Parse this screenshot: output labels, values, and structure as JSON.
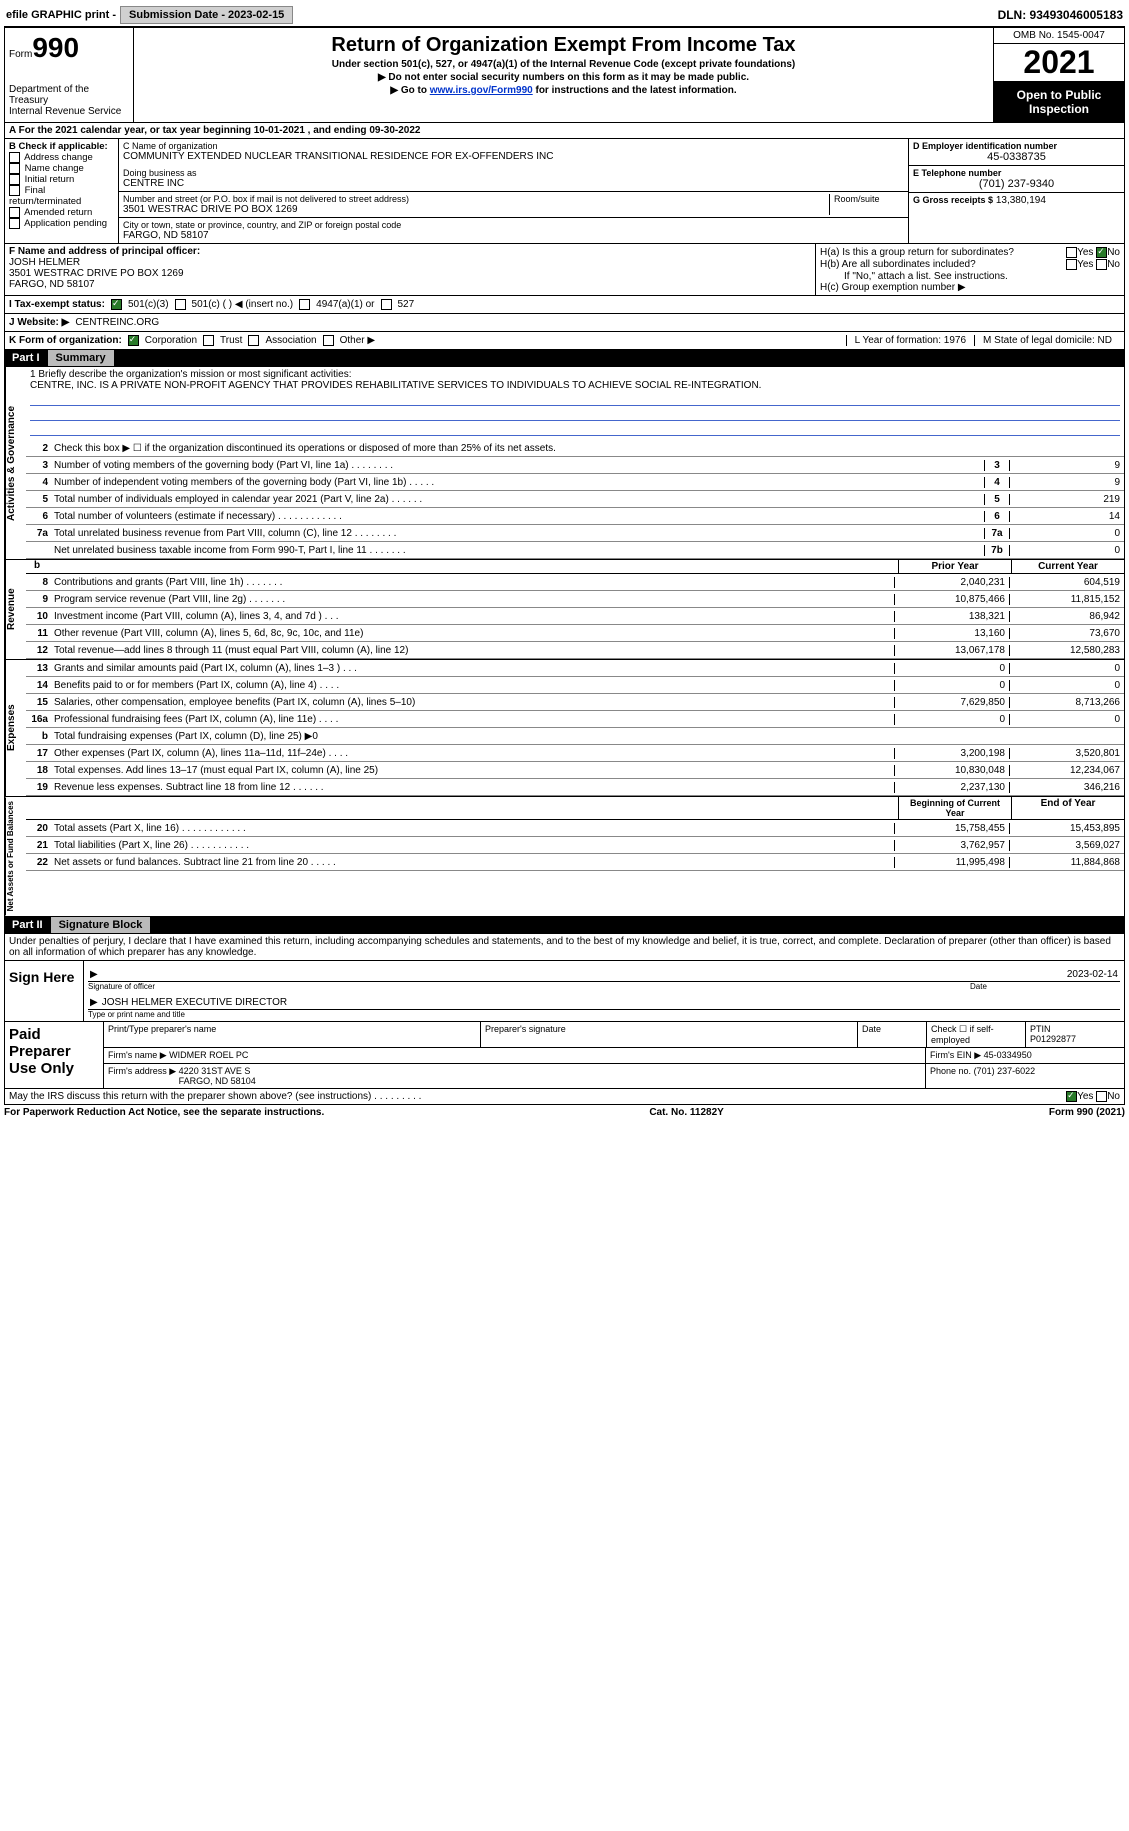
{
  "topbar": {
    "efile": "efile GRAPHIC print -",
    "btn": "Submission Date - 2023-02-15",
    "dln": "DLN: 93493046005183"
  },
  "header": {
    "form_label": "Form",
    "form_num": "990",
    "dept": "Department of the Treasury\nInternal Revenue Service",
    "title": "Return of Organization Exempt From Income Tax",
    "sub": "Under section 501(c), 527, or 4947(a)(1) of the Internal Revenue Code (except private foundations)",
    "line1": "▶ Do not enter social security numbers on this form as it may be made public.",
    "line2_pre": "▶ Go to ",
    "line2_link": "www.irs.gov/Form990",
    "line2_post": " for instructions and the latest information.",
    "omb": "OMB No. 1545-0047",
    "year": "2021",
    "open": "Open to Public Inspection"
  },
  "rowA": "A For the 2021 calendar year, or tax year beginning 10-01-2021     , and ending 09-30-2022",
  "colB": {
    "hdr": "B Check if applicable:",
    "items": [
      "Address change",
      "Name change",
      "Initial return",
      "Final return/terminated",
      "Amended return",
      "Application pending"
    ]
  },
  "colC": {
    "l1": "C Name of organization",
    "name": "COMMUNITY EXTENDED NUCLEAR TRANSITIONAL RESIDENCE FOR EX-OFFENDERS INC",
    "dba_l": "Doing business as",
    "dba": "CENTRE INC",
    "addr_l": "Number and street (or P.O. box if mail is not delivered to street address)",
    "room_l": "Room/suite",
    "addr": "3501 WESTRAC DRIVE PO BOX 1269",
    "city_l": "City or town, state or province, country, and ZIP or foreign postal code",
    "city": "FARGO, ND  58107"
  },
  "colDEG": {
    "d_l": "D Employer identification number",
    "d": "45-0338735",
    "e_l": "E Telephone number",
    "e": "(701) 237-9340",
    "g_l": "G Gross receipts $",
    "g": "13,380,194"
  },
  "colF": {
    "hdr": "F Name and address of principal officer:",
    "name": "JOSH HELMER",
    "addr": "3501 WESTRAC DRIVE PO BOX 1269\nFARGO, ND  58107"
  },
  "colH": {
    "ha": "H(a) Is this a group return for subordinates?",
    "hb": "H(b) Are all subordinates included?",
    "hb_note": "If \"No,\" attach a list. See instructions.",
    "hc": "H(c) Group exemption number ▶",
    "yes": "Yes",
    "no": "No"
  },
  "rowI": {
    "label": "I  Tax-exempt status:",
    "opts": [
      "501(c)(3)",
      "501(c) (  ) ◀ (insert no.)",
      "4947(a)(1) or",
      "527"
    ]
  },
  "rowJ": {
    "label": "J  Website: ▶",
    "val": "CENTREINC.ORG"
  },
  "rowK": {
    "label": "K Form of organization:",
    "opts": [
      "Corporation",
      "Trust",
      "Association",
      "Other ▶"
    ],
    "l": "L Year of formation: 1976",
    "m": "M State of legal domicile: ND"
  },
  "part1": {
    "num": "Part I",
    "title": "Summary"
  },
  "part2": {
    "num": "Part II",
    "title": "Signature Block"
  },
  "vtabs": [
    "Activities & Governance",
    "Revenue",
    "Expenses",
    "Net Assets or Fund Balances"
  ],
  "mission": {
    "l1": "1   Briefly describe the organization's mission or most significant activities:",
    "txt": "CENTRE, INC. IS A PRIVATE NON-PROFIT AGENCY THAT PROVIDES REHABILITATIVE SERVICES TO INDIVIDUALS TO ACHIEVE SOCIAL RE-INTEGRATION."
  },
  "lines_ag": [
    {
      "n": "2",
      "d": "Check this box ▶ ☐ if the organization discontinued its operations or disposed of more than 25% of its net assets.",
      "box": "",
      "v": ""
    },
    {
      "n": "3",
      "d": "Number of voting members of the governing body (Part VI, line 1a)  .    .    .    .    .    .    .    .",
      "box": "3",
      "v": "9"
    },
    {
      "n": "4",
      "d": "Number of independent voting members of the governing body (Part VI, line 1b)  .    .    .    .    .",
      "box": "4",
      "v": "9"
    },
    {
      "n": "5",
      "d": "Total number of individuals employed in calendar year 2021 (Part V, line 2a)  .    .    .    .    .    .",
      "box": "5",
      "v": "219"
    },
    {
      "n": "6",
      "d": "Total number of volunteers (estimate if necessary)  .    .    .    .    .    .    .    .    .    .    .    .",
      "box": "6",
      "v": "14"
    },
    {
      "n": "7a",
      "d": "Total unrelated business revenue from Part VIII, column (C), line 12  .    .    .    .    .    .    .    .",
      "box": "7a",
      "v": "0"
    },
    {
      "n": "",
      "d": "Net unrelated business taxable income from Form 990-T, Part I, line 11  .    .    .    .    .    .    .",
      "box": "7b",
      "v": "0"
    }
  ],
  "hdr_rev": {
    "b": "b",
    "c1": "Prior Year",
    "c2": "Current Year"
  },
  "lines_rev": [
    {
      "n": "8",
      "d": "Contributions and grants (Part VIII, line 1h)  .    .    .    .    .    .    .",
      "p": "2,040,231",
      "c": "604,519"
    },
    {
      "n": "9",
      "d": "Program service revenue (Part VIII, line 2g)  .    .    .    .    .    .    .",
      "p": "10,875,466",
      "c": "11,815,152"
    },
    {
      "n": "10",
      "d": "Investment income (Part VIII, column (A), lines 3, 4, and 7d )  .    .    .",
      "p": "138,321",
      "c": "86,942"
    },
    {
      "n": "11",
      "d": "Other revenue (Part VIII, column (A), lines 5, 6d, 8c, 9c, 10c, and 11e)",
      "p": "13,160",
      "c": "73,670"
    },
    {
      "n": "12",
      "d": "Total revenue—add lines 8 through 11 (must equal Part VIII, column (A), line 12)",
      "p": "13,067,178",
      "c": "12,580,283"
    }
  ],
  "lines_exp": [
    {
      "n": "13",
      "d": "Grants and similar amounts paid (Part IX, column (A), lines 1–3 )  .    .    .",
      "p": "0",
      "c": "0"
    },
    {
      "n": "14",
      "d": "Benefits paid to or for members (Part IX, column (A), line 4)  .    .    .    .",
      "p": "0",
      "c": "0"
    },
    {
      "n": "15",
      "d": "Salaries, other compensation, employee benefits (Part IX, column (A), lines 5–10)",
      "p": "7,629,850",
      "c": "8,713,266"
    },
    {
      "n": "16a",
      "d": "Professional fundraising fees (Part IX, column (A), line 11e)  .    .    .    .",
      "p": "0",
      "c": "0"
    },
    {
      "n": "b",
      "d": "Total fundraising expenses (Part IX, column (D), line 25) ▶0",
      "p": "",
      "c": "",
      "shade": true
    },
    {
      "n": "17",
      "d": "Other expenses (Part IX, column (A), lines 11a–11d, 11f–24e)  .    .    .    .",
      "p": "3,200,198",
      "c": "3,520,801"
    },
    {
      "n": "18",
      "d": "Total expenses. Add lines 13–17 (must equal Part IX, column (A), line 25)",
      "p": "10,830,048",
      "c": "12,234,067"
    },
    {
      "n": "19",
      "d": "Revenue less expenses. Subtract line 18 from line 12  .    .    .    .    .    .",
      "p": "2,237,130",
      "c": "346,216"
    }
  ],
  "hdr_na": {
    "c1": "Beginning of Current Year",
    "c2": "End of Year"
  },
  "lines_na": [
    {
      "n": "20",
      "d": "Total assets (Part X, line 16)  .    .    .    .    .    .    .    .    .    .    .    .",
      "p": "15,758,455",
      "c": "15,453,895"
    },
    {
      "n": "21",
      "d": "Total liabilities (Part X, line 26)  .    .    .    .    .    .    .    .    .    .    .",
      "p": "3,762,957",
      "c": "3,569,027"
    },
    {
      "n": "22",
      "d": "Net assets or fund balances. Subtract line 21 from line 20  .    .    .    .    .",
      "p": "11,995,498",
      "c": "11,884,868"
    }
  ],
  "sig": {
    "penalty": "Under penalties of perjury, I declare that I have examined this return, including accompanying schedules and statements, and to the best of my knowledge and belief, it is true, correct, and complete. Declaration of preparer (other than officer) is based on all information of which preparer has any knowledge.",
    "sign_here": "Sign Here",
    "sig_l": "Signature of officer",
    "date": "2023-02-14",
    "date_l": "Date",
    "name": "JOSH HELMER  EXECUTIVE DIRECTOR",
    "name_l": "Type or print name and title"
  },
  "prep": {
    "lab": "Paid Preparer Use Only",
    "h1": "Print/Type preparer's name",
    "h2": "Preparer's signature",
    "h3": "Date",
    "h4": "Check ☐ if self-employed",
    "h5_l": "PTIN",
    "h5": "P01292877",
    "firm_l": "Firm's name      ▶",
    "firm": "WIDMER ROEL PC",
    "ein_l": "Firm's EIN ▶",
    "ein": "45-0334950",
    "addr_l": "Firm's address ▶",
    "addr": "4220 31ST AVE S\nFARGO, ND  58104",
    "phone_l": "Phone no.",
    "phone": "(701) 237-6022"
  },
  "footer": {
    "q": "May the IRS discuss this return with the preparer shown above? (see instructions)  .    .    .    .    .    .    .    .    .",
    "yes": "Yes",
    "no": "No"
  },
  "bottom": {
    "l": "For Paperwork Reduction Act Notice, see the separate instructions.",
    "m": "Cat. No. 11282Y",
    "r": "Form 990 (2021)"
  }
}
